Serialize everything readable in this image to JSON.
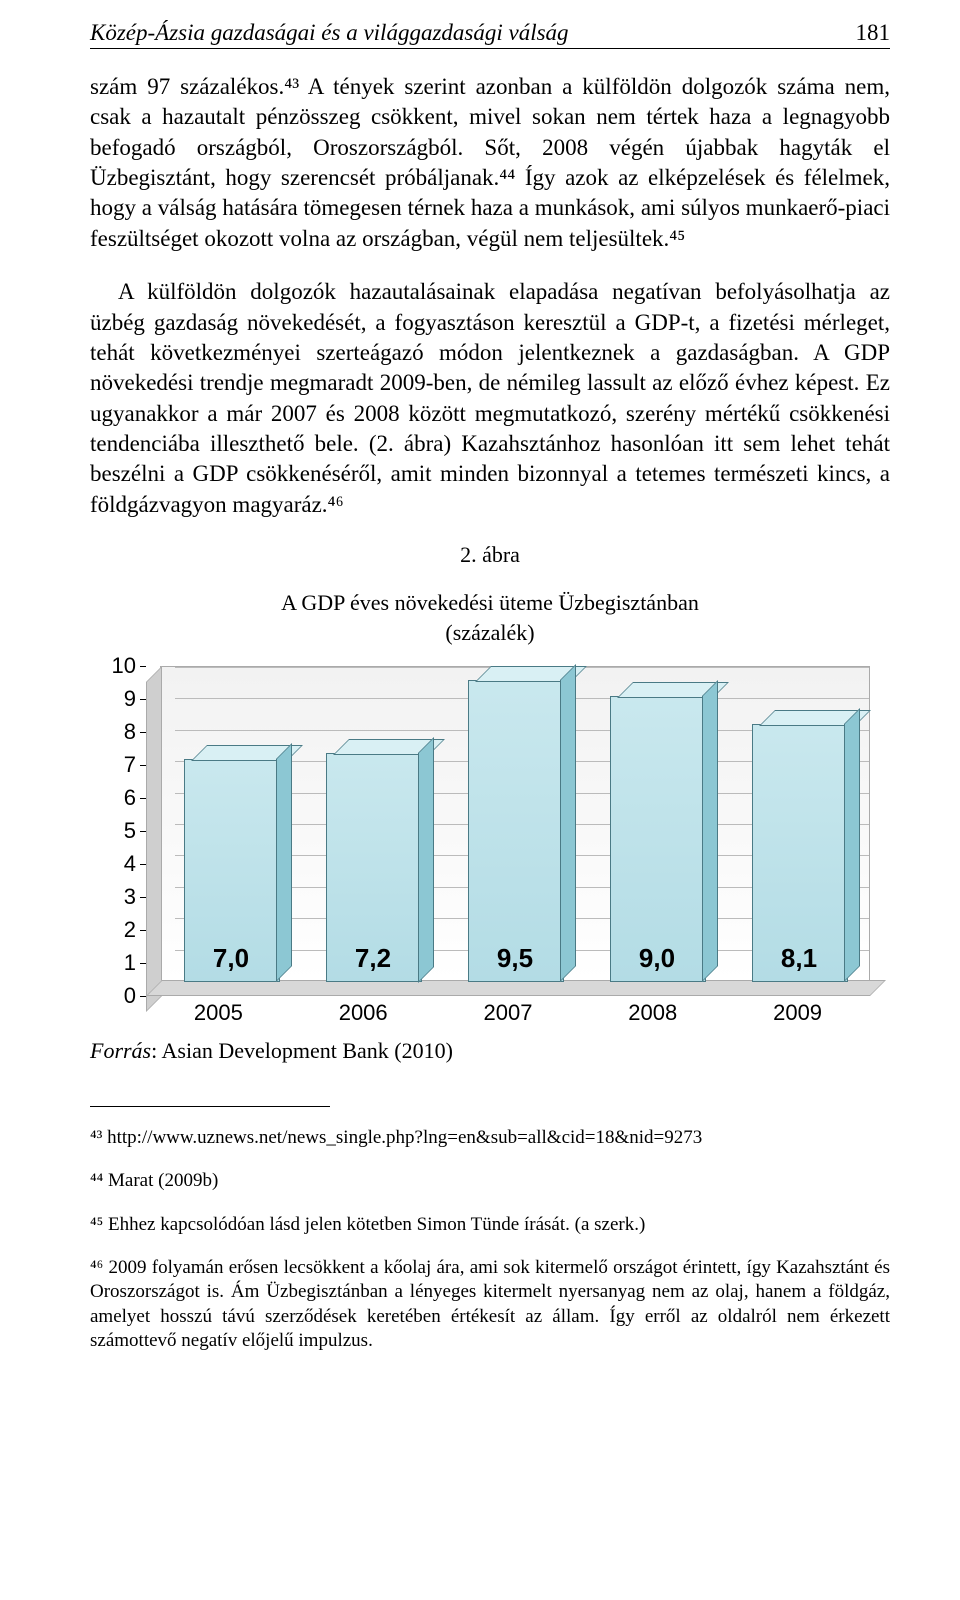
{
  "header": {
    "title": "Közép-Ázsia gazdaságai és a világgazdasági válság",
    "pagenum": "181"
  },
  "paragraphs": {
    "p1": "szám 97 százalékos.⁴³ A tények szerint azonban a külföldön dolgozók száma nem, csak a hazautalt pénzösszeg csökkent, mivel sokan nem tértek haza a legnagyobb befogadó országból, Oroszországból. Sőt, 2008 végén újabbak hagyták el Üzbegisztánt, hogy szerencsét próbáljanak.⁴⁴ Így azok az elképzelések és félelmek, hogy a válság hatására tömegesen térnek haza a munkások, ami súlyos munkaerő-piaci feszültséget okozott volna az országban, végül nem teljesültek.⁴⁵",
    "p2": "A külföldön dolgozók hazautalásainak elapadása negatívan befolyásolhatja az üzbég gazdaság növekedését, a fogyasztáson keresztül a GDP-t, a fizetési mérleget, tehát következményei szerteágazó módon jelentkeznek a gazdaságban. A GDP növekedési trendje megmaradt 2009-ben, de némileg lassult az előző évhez képest. Ez ugyanakkor a már 2007 és 2008 között megmutatkozó, szerény mértékű csökkenési tendenciába illeszthető bele. (2. ábra) Kazahsztánhoz hasonlóan itt sem lehet tehát beszélni a GDP csökkenéséről, amit minden bizonnyal a tetemes természeti kincs, a földgázvagyon magyaráz.⁴⁶"
  },
  "chart": {
    "caption_line1": "2. ábra",
    "caption_line2": "A GDP éves növekedési üteme Üzbegisztánban",
    "caption_line3": "(százalék)",
    "type": "bar",
    "categories": [
      "2005",
      "2006",
      "2007",
      "2008",
      "2009"
    ],
    "values": [
      7.0,
      7.2,
      9.5,
      9.0,
      8.1
    ],
    "value_labels": [
      "7,0",
      "7,2",
      "9,5",
      "9,0",
      "8,1"
    ],
    "bar_fill_top": "#c9e8ee",
    "bar_fill_bottom": "#b3dce5",
    "bar_side": "#8cc7d3",
    "bar_top": "#d9f0f4",
    "bar_border": "#4a7a85",
    "ymin": 0,
    "ymax": 10,
    "ytick_step": 1,
    "grid_color": "#bbbbbb",
    "background_top": "#f2f2f2",
    "background_bottom": "#ffffff",
    "source_label": "Forrás",
    "source_text": ": Asian Development Bank (2010)"
  },
  "footnotes": {
    "f43": "⁴³ http://www.uznews.net/news_single.php?lng=en&sub=all&cid=18&nid=9273",
    "f44": "⁴⁴ Marat (2009b)",
    "f45": "⁴⁵ Ehhez kapcsolódóan lásd jelen kötetben Simon Tünde írását. (a szerk.)",
    "f46": "⁴⁶ 2009 folyamán erősen lecsökkent a kőolaj ára, ami sok kitermelő országot érintett, így Kazahsztánt és Oroszországot is. Ám Üzbegisztánban a lényeges kitermelt nyersanyag nem az olaj, hanem a földgáz, amelyet hosszú távú szerződések keretében értékesít az állam. Így erről az oldalról nem érkezett számottevő negatív előjelű impulzus."
  }
}
